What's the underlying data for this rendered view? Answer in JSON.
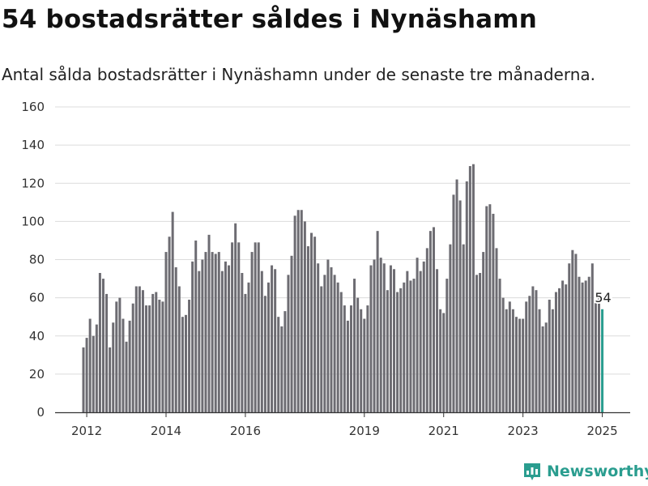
{
  "title": "54 bostadsrätter såldes i Nynäshamn",
  "subtitle": "Antal sålda bostadsrätter i Nynäshamn under de senaste tre månaderna.",
  "brand": {
    "name": "Newsworthy",
    "icon": "newsworthy-logo-icon",
    "color": "#2a9d8f"
  },
  "chart_data": {
    "type": "bar",
    "xlabel": "",
    "ylabel": "",
    "ylim": [
      0,
      160
    ],
    "yticks": [
      0,
      20,
      40,
      60,
      80,
      100,
      120,
      140,
      160
    ],
    "xticks": [
      {
        "label": "2012",
        "index": 1
      },
      {
        "label": "2014",
        "index": 25
      },
      {
        "label": "2016",
        "index": 49
      },
      {
        "label": "2019",
        "index": 85
      },
      {
        "label": "2021",
        "index": 109
      },
      {
        "label": "2023",
        "index": 133
      },
      {
        "label": "2025",
        "index": 157
      }
    ],
    "bar_color": "#6d6c72",
    "highlight_color": "#2a9d8f",
    "grid": true,
    "annotation": {
      "text": "54",
      "index": 157
    },
    "values": [
      34,
      39,
      49,
      40,
      46,
      73,
      70,
      62,
      34,
      47,
      58,
      60,
      49,
      37,
      48,
      57,
      66,
      66,
      64,
      56,
      56,
      62,
      63,
      59,
      58,
      84,
      92,
      105,
      76,
      66,
      50,
      51,
      59,
      79,
      90,
      74,
      80,
      84,
      93,
      84,
      83,
      84,
      74,
      79,
      77,
      89,
      99,
      89,
      73,
      62,
      68,
      84,
      89,
      89,
      74,
      61,
      68,
      77,
      75,
      50,
      45,
      53,
      72,
      82,
      103,
      106,
      106,
      100,
      87,
      94,
      92,
      78,
      66,
      72,
      80,
      76,
      72,
      68,
      63,
      56,
      48,
      56,
      70,
      60,
      54,
      49,
      56,
      77,
      80,
      95,
      81,
      78,
      64,
      77,
      75,
      63,
      65,
      68,
      74,
      69,
      70,
      81,
      74,
      79,
      86,
      95,
      97,
      75,
      54,
      52,
      70,
      88,
      114,
      122,
      111,
      88,
      121,
      129,
      130,
      72,
      73,
      84,
      108,
      109,
      104,
      86,
      70,
      60,
      54,
      58,
      54,
      50,
      49,
      49,
      58,
      61,
      66,
      64,
      54,
      45,
      47,
      59,
      54,
      63,
      65,
      69,
      67,
      78,
      85,
      83,
      71,
      68,
      69,
      71,
      78,
      60,
      60,
      54
    ]
  }
}
